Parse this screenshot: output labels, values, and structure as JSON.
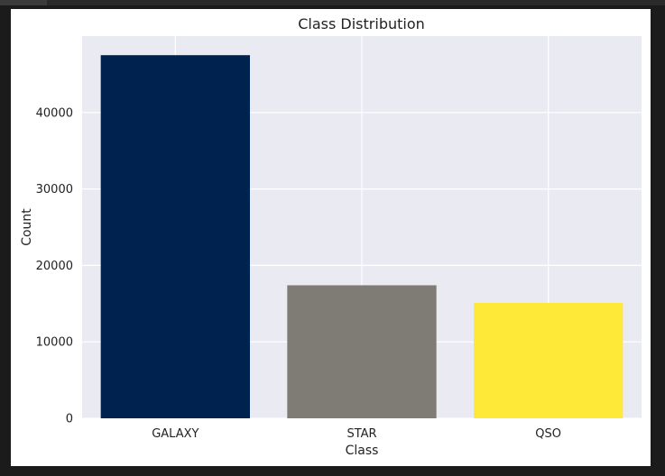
{
  "colors": {
    "plot_background": "#eaeaf2",
    "grid": "#ffffff",
    "bar_colors": [
      "#00224e",
      "#7f7c75",
      "#fee838"
    ]
  },
  "chart_data": {
    "type": "bar",
    "title": "Class Distribution",
    "xlabel": "Class",
    "ylabel": "Count",
    "categories": [
      "GALAXY",
      "STAR",
      "QSO"
    ],
    "values": [
      47500,
      17400,
      15100
    ],
    "ylim": [
      0,
      50000
    ],
    "yticks": [
      "0",
      "10000",
      "20000",
      "30000",
      "40000"
    ],
    "grid": true,
    "legend": false
  }
}
